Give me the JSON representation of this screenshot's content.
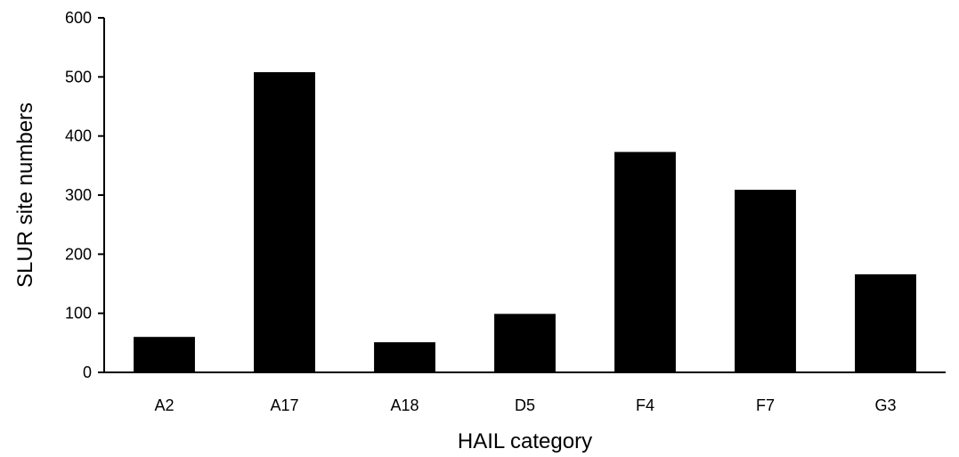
{
  "chart_data": {
    "type": "bar",
    "title": "",
    "xlabel": "HAIL category",
    "ylabel": "SLUR site numbers",
    "categories": [
      "A2",
      "A17",
      "A18",
      "D5",
      "F4",
      "F7",
      "G3"
    ],
    "values": [
      60,
      508,
      51,
      99,
      373,
      309,
      166
    ],
    "ylim": [
      0,
      600
    ],
    "yticks": [
      0,
      100,
      200,
      300,
      400,
      500,
      600
    ],
    "grid": false,
    "legend": "none",
    "bar_color": "#000000"
  }
}
